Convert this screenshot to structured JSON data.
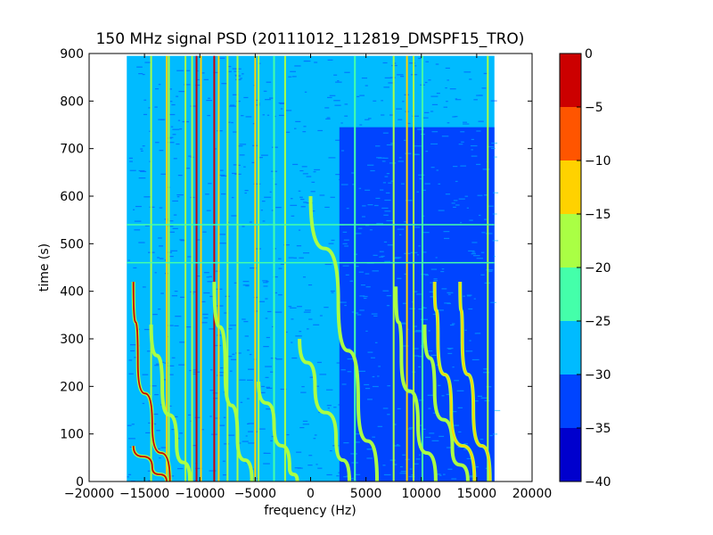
{
  "chart_data": {
    "type": "heatmap",
    "title": "150 MHz signal PSD (20111012_112819_DMSPF15_TRO)",
    "xlabel": "frequency (Hz)",
    "ylabel": "time (s)",
    "xlim": [
      -20000,
      20000
    ],
    "ylim": [
      0,
      900
    ],
    "x_ticks": [
      -20000,
      -15000,
      -10000,
      -5000,
      0,
      5000,
      10000,
      15000,
      20000
    ],
    "y_ticks": [
      0,
      100,
      200,
      300,
      400,
      500,
      600,
      700,
      800,
      900
    ],
    "data_extent": {
      "x": [
        -16600,
        16600
      ],
      "y": [
        0,
        895
      ]
    },
    "colorbar": {
      "levels": [
        -40,
        -35,
        -30,
        -25,
        -20,
        -15,
        -10,
        -5,
        0
      ],
      "colors": [
        "#0000cd",
        "#0044ff",
        "#00bbff",
        "#44ffaa",
        "#aaff44",
        "#ffd200",
        "#ff5500",
        "#cc0000"
      ],
      "tick_labels": [
        "−40",
        "−35",
        "−30",
        "−25",
        "−20",
        "−15",
        "−10",
        "−5",
        "0"
      ]
    },
    "background_level": -30,
    "quiet_region": {
      "x": [
        2600,
        16600
      ],
      "y": [
        0,
        745
      ],
      "level": -35
    },
    "vertical_lines": [
      {
        "x": -14400,
        "level": -20
      },
      {
        "x": -13000,
        "level": -15
      },
      {
        "x": -12800,
        "level": -20
      },
      {
        "x": -11300,
        "level": -20
      },
      {
        "x": -10700,
        "level": -20
      },
      {
        "x": -10300,
        "level": -5
      },
      {
        "x": -9900,
        "level": -15
      },
      {
        "x": -8700,
        "level": -5
      },
      {
        "x": -8300,
        "level": -15
      },
      {
        "x": -7500,
        "level": -20
      },
      {
        "x": -6600,
        "level": -20
      },
      {
        "x": -5000,
        "level": -15
      },
      {
        "x": -4700,
        "level": -20
      },
      {
        "x": -3300,
        "level": -25
      },
      {
        "x": -2300,
        "level": -20
      },
      {
        "x": 4000,
        "level": -25
      },
      {
        "x": 7500,
        "level": -20
      },
      {
        "x": 8700,
        "level": -15
      },
      {
        "x": 9300,
        "level": -20
      },
      {
        "x": 10100,
        "level": -25
      },
      {
        "x": 16000,
        "level": -20
      }
    ],
    "horizontal_lines": [
      {
        "y": 540,
        "level": -25
      },
      {
        "y": 460,
        "level": -25
      }
    ],
    "doppler_traces": [
      {
        "level": -5,
        "points": [
          [
            -16000,
            420
          ],
          [
            -15600,
            250
          ],
          [
            -14300,
            120
          ],
          [
            -12700,
            0
          ]
        ]
      },
      {
        "level": -5,
        "points": [
          [
            -16000,
            75
          ],
          [
            -14300,
            30
          ],
          [
            -13000,
            0
          ]
        ]
      },
      {
        "level": -20,
        "points": [
          [
            -14400,
            330
          ],
          [
            -13400,
            200
          ],
          [
            -12100,
            80
          ],
          [
            -10900,
            0
          ]
        ]
      },
      {
        "level": -20,
        "points": [
          [
            -8700,
            420
          ],
          [
            -7700,
            230
          ],
          [
            -6600,
            90
          ],
          [
            -5300,
            0
          ]
        ]
      },
      {
        "level": -20,
        "points": [
          [
            0,
            600
          ],
          [
            2500,
            380
          ],
          [
            4300,
            170
          ],
          [
            6000,
            0
          ]
        ]
      },
      {
        "level": -20,
        "points": [
          [
            -1000,
            300
          ],
          [
            400,
            200
          ],
          [
            2300,
            90
          ],
          [
            3500,
            0
          ]
        ]
      },
      {
        "level": -20,
        "points": [
          [
            -4700,
            210
          ],
          [
            -3300,
            120
          ],
          [
            -1900,
            30
          ],
          [
            -1200,
            0
          ]
        ]
      },
      {
        "level": -20,
        "points": [
          [
            7700,
            410
          ],
          [
            8200,
            260
          ],
          [
            9700,
            120
          ],
          [
            11300,
            0
          ]
        ]
      },
      {
        "level": -20,
        "points": [
          [
            10300,
            330
          ],
          [
            11200,
            190
          ],
          [
            12800,
            70
          ],
          [
            14200,
            0
          ]
        ]
      },
      {
        "level": -15,
        "points": [
          [
            11200,
            420
          ],
          [
            11500,
            300
          ],
          [
            12700,
            150
          ],
          [
            14800,
            0
          ]
        ]
      },
      {
        "level": -15,
        "points": [
          [
            13500,
            420
          ],
          [
            13700,
            300
          ],
          [
            14700,
            150
          ],
          [
            16200,
            0
          ]
        ]
      }
    ]
  }
}
